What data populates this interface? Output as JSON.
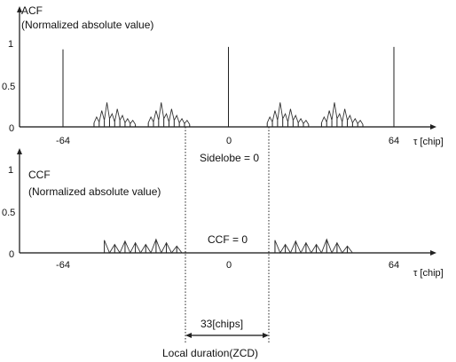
{
  "chart_data": [
    {
      "type": "stem",
      "title": "ACF",
      "subtitle": "(Normalized absolute value)",
      "xlabel": "τ [chip]",
      "x_ticks": [
        "-64",
        "0",
        "64"
      ],
      "y_ticks": [
        "1",
        "0.5",
        "0"
      ],
      "xlim": [
        -78,
        78
      ],
      "ylim": [
        0,
        1
      ],
      "annotation": "Sidelobe = 0",
      "peaks": [
        {
          "x": -64,
          "y": 0.95
        },
        {
          "x": 0,
          "y": 0.98
        },
        {
          "x": 64,
          "y": 0.98
        }
      ],
      "sidelobe_groups": [
        {
          "x_start": -52,
          "x_end": -36
        },
        {
          "x_start": -31,
          "x_end": -15
        },
        {
          "x_start": 15,
          "x_end": 31
        },
        {
          "x_start": 36,
          "x_end": 52
        }
      ],
      "sidelobe_values": [
        0.05,
        0.12,
        0.06,
        0.2,
        0.08,
        0.3,
        0.1,
        0.16,
        0.06,
        0.22,
        0.08,
        0.14,
        0.05,
        0.1,
        0.04,
        0.08,
        0.03
      ]
    },
    {
      "type": "stem",
      "title": "CCF",
      "subtitle": "(Normalized absolute value)",
      "xlabel": "τ [chip]",
      "x_ticks": [
        "-64",
        "0",
        "64"
      ],
      "y_ticks": [
        "1",
        "0.5",
        "0"
      ],
      "xlim": [
        -78,
        78
      ],
      "ylim": [
        0,
        1
      ],
      "annotation": "CCF = 0",
      "groups": [
        {
          "x_start": -48,
          "x_end": -18
        },
        {
          "x_start": 18,
          "x_end": 48
        }
      ],
      "values": [
        0.15,
        0.22,
        0.1,
        0.28,
        0.14,
        0.36,
        0.12,
        0.2,
        0.1,
        0.3,
        0.16,
        0.26,
        0.12,
        0.18,
        0.08,
        0.22
      ]
    }
  ],
  "zcd": {
    "x_start": -16,
    "x_end": 16,
    "span_label": "33[chips]",
    "caption": "Local duration(ZCD)"
  }
}
